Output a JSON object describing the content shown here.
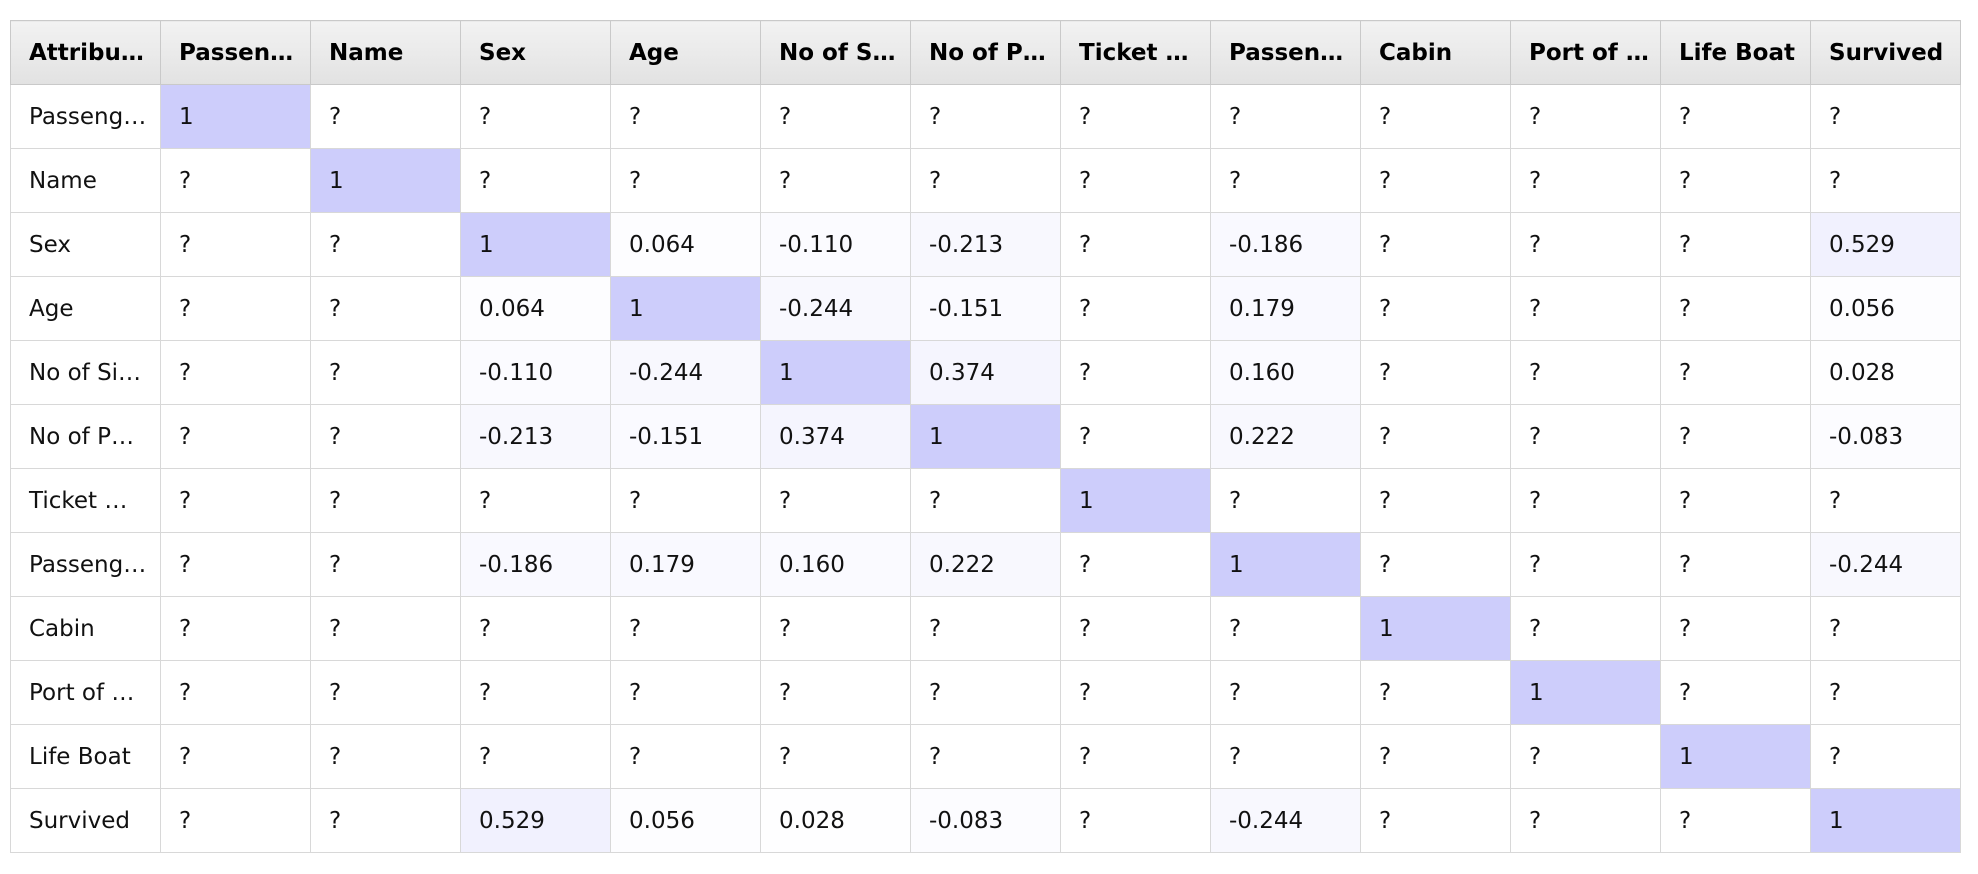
{
  "colors": {
    "diagonal": "#cdcdfb",
    "cell_base": "#ffffff",
    "header_bg": "#e6e6e6",
    "grid_line": "#d8d8d8"
  },
  "matrix": {
    "corner_header": "Attribu…",
    "column_headers": [
      "Passen…",
      "Name",
      "Sex",
      "Age",
      "No of S…",
      "No of P…",
      "Ticket …",
      "Passen…",
      "Cabin",
      "Port of …",
      "Life Boat",
      "Survived"
    ],
    "row_headers": [
      "Passeng…",
      "Name",
      "Sex",
      "Age",
      "No of Si…",
      "No of P…",
      "Ticket …",
      "Passeng…",
      "Cabin",
      "Port of …",
      "Life Boat",
      "Survived"
    ],
    "rows": [
      [
        "1",
        "?",
        "?",
        "?",
        "?",
        "?",
        "?",
        "?",
        "?",
        "?",
        "?",
        "?"
      ],
      [
        "?",
        "1",
        "?",
        "?",
        "?",
        "?",
        "?",
        "?",
        "?",
        "?",
        "?",
        "?"
      ],
      [
        "?",
        "?",
        "1",
        "0.064",
        "-0.110",
        "-0.213",
        "?",
        "-0.186",
        "?",
        "?",
        "?",
        "0.529"
      ],
      [
        "?",
        "?",
        "0.064",
        "1",
        "-0.244",
        "-0.151",
        "?",
        "0.179",
        "?",
        "?",
        "?",
        "0.056"
      ],
      [
        "?",
        "?",
        "-0.110",
        "-0.244",
        "1",
        "0.374",
        "?",
        "0.160",
        "?",
        "?",
        "?",
        "0.028"
      ],
      [
        "?",
        "?",
        "-0.213",
        "-0.151",
        "0.374",
        "1",
        "?",
        "0.222",
        "?",
        "?",
        "?",
        "-0.083"
      ],
      [
        "?",
        "?",
        "?",
        "?",
        "?",
        "?",
        "1",
        "?",
        "?",
        "?",
        "?",
        "?"
      ],
      [
        "?",
        "?",
        "-0.186",
        "0.179",
        "0.160",
        "0.222",
        "?",
        "1",
        "?",
        "?",
        "?",
        "-0.244"
      ],
      [
        "?",
        "?",
        "?",
        "?",
        "?",
        "?",
        "?",
        "?",
        "1",
        "?",
        "?",
        "?"
      ],
      [
        "?",
        "?",
        "?",
        "?",
        "?",
        "?",
        "?",
        "?",
        "?",
        "1",
        "?",
        "?"
      ],
      [
        "?",
        "?",
        "?",
        "?",
        "?",
        "?",
        "?",
        "?",
        "?",
        "?",
        "1",
        "?"
      ],
      [
        "?",
        "?",
        "0.529",
        "0.056",
        "0.028",
        "-0.083",
        "?",
        "-0.244",
        "?",
        "?",
        "?",
        "1"
      ]
    ]
  }
}
